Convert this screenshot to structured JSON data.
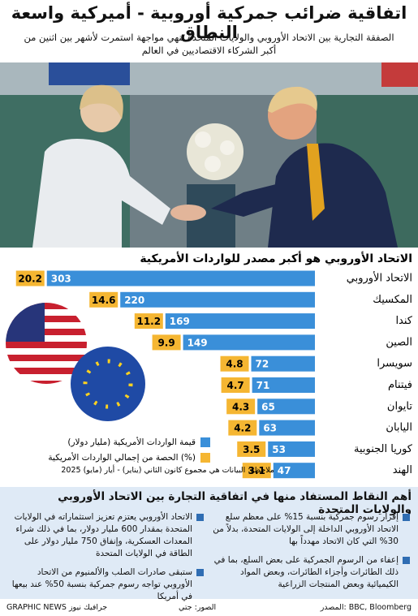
{
  "header": {
    "title": "اتفاقية ضرائب جمركية أوروبية - أميركية واسعة النطاق",
    "subtitle": "الصفقة التجارية بين الاتحاد الأوروبي والولايات المتحدة تنهي مواجهة استمرت لأشهر بين اثنين من أكبر الشركاء الاقتصاديين في العالم"
  },
  "chart_data": {
    "type": "bar",
    "title": "الاتحاد الأوروبي هو أكبر مصدر للواردات الأمريكية",
    "categories": [
      "الاتحاد الأوروبي",
      "المكسيك",
      "كندا",
      "الصين",
      "سويسرا",
      "فيتنام",
      "تايوان",
      "اليابان",
      "كوريا الجنوبية",
      "الهند"
    ],
    "series": [
      {
        "name": "قيمة الواردات الأمريكية (مليار دولار)",
        "color": "#3a8fd9",
        "values": [
          303,
          220,
          169,
          149,
          72,
          71,
          65,
          63,
          53,
          47
        ]
      },
      {
        "name": "الحصة من إجمالي الواردات الأمريكية (%)",
        "color": "#f5b632",
        "values": [
          20.2,
          14.6,
          11.2,
          9.9,
          4.8,
          4.7,
          4.3,
          4.2,
          3.5,
          3.1
        ]
      }
    ],
    "note": "ملاحظة: البيانات هي مجموع كانون الثاني (يناير) - أيار (مايو) 2025"
  },
  "key_points": {
    "title": "أهم النقاط المستفاد منها في اتفاقية التجارة بين الاتحاد الأوروبي والولايات المتحدة",
    "items": [
      "إقرار رسوم جمركية بنسبة 15% على معظم سلع الاتحاد الأوروبي الداخلة إلى الولايات المتحدة، بدلاً من 30% التي كان الاتحاد مهدداً بها",
      "إعفاء من الرسوم الجمركية على بعض السلع، بما في ذلك الطائرات وأجزاء الطائرات، وبعض المواد الكيميائية وبعض المنتجات الزراعية",
      "الاتحاد الأوروبي يعتزم تعزيز استثماراته في الولايات المتحدة بمقدار 600 مليار دولار، بما في ذلك شراء المعدات العسكرية، وإنفاق 750 مليار دولار على الطاقة في الولايات المتحدة",
      "ستبقى صادرات الصلب والألمنيوم من الاتحاد الأوروبي تواجه رسوم جمركية بنسبة 50% عند بيعها في أمريكا"
    ]
  },
  "footer": {
    "source": "المصدر: BBC, Bloomberg",
    "photos": "الصور: جتي",
    "brand": "GRAPHIC NEWS جرافيك نيوز"
  }
}
